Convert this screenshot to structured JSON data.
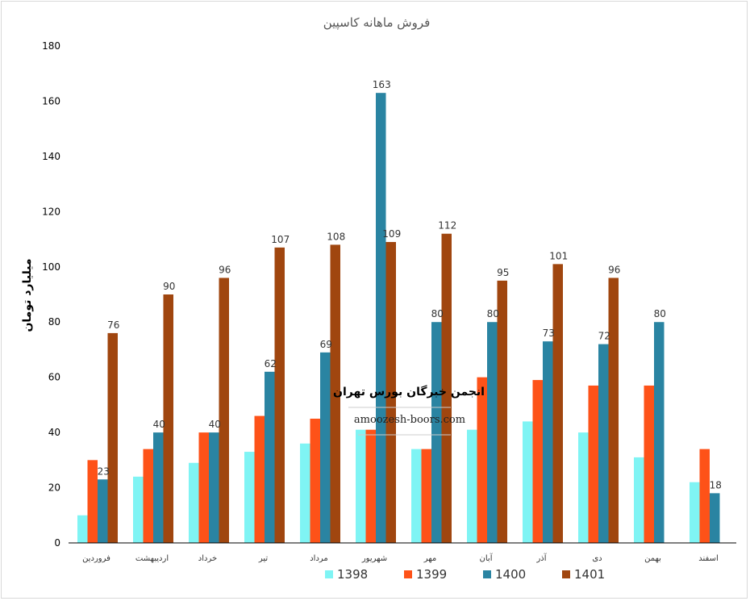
{
  "chart_data": {
    "type": "bar",
    "title": "فروش ماهانه کاسپین",
    "ylabel": "میلیارد تومان",
    "xlabel": "",
    "ylim": [
      0,
      180
    ],
    "yticks": [
      0,
      20,
      40,
      60,
      80,
      100,
      120,
      140,
      160,
      180
    ],
    "grid": false,
    "legend_position": "bottom",
    "categories": [
      "فروردین",
      "اردیبهشت",
      "خرداد",
      "تیر",
      "مرداد",
      "شهریور",
      "مهر",
      "آبان",
      "آذر",
      "دی",
      "بهمن",
      "اسفند"
    ],
    "series": [
      {
        "name": "1398",
        "color": "#7ff4f4",
        "values": [
          10,
          24,
          29,
          33,
          36,
          41,
          34,
          41,
          44,
          40,
          31,
          22
        ],
        "show_labels": false
      },
      {
        "name": "1399",
        "color": "#fe5218",
        "values": [
          30,
          34,
          40,
          46,
          45,
          41,
          34,
          60,
          59,
          57,
          57,
          34
        ],
        "show_labels": false
      },
      {
        "name": "1400",
        "color": "#2a84a2",
        "values": [
          23,
          40,
          40,
          62,
          69,
          163,
          80,
          80,
          73,
          72,
          80,
          18
        ],
        "show_labels": true
      },
      {
        "name": "1401",
        "color": "#a0460f",
        "values": [
          76,
          90,
          96,
          107,
          108,
          109,
          112,
          95,
          101,
          96,
          null,
          null
        ],
        "show_labels": true
      }
    ]
  },
  "watermark": {
    "title": "انجمن خبرگان بورس تهران",
    "url": "amoozesh-boors.com"
  }
}
